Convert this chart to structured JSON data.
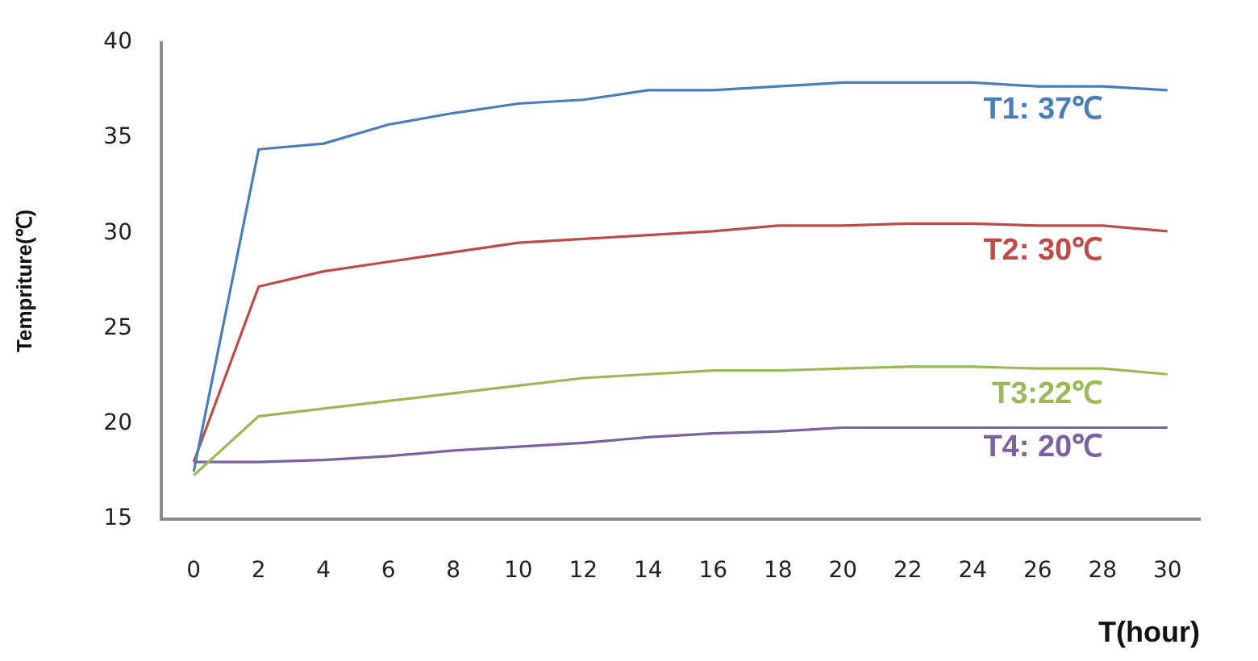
{
  "chart_data": {
    "type": "line",
    "xlabel": "T(hour)",
    "ylabel": "Tempriture(℃)",
    "x": [
      0,
      2,
      4,
      6,
      8,
      10,
      12,
      14,
      16,
      18,
      20,
      22,
      24,
      26,
      28,
      30
    ],
    "xlim": [
      -1,
      31
    ],
    "xticks": [
      0,
      2,
      4,
      6,
      8,
      10,
      12,
      14,
      16,
      18,
      20,
      22,
      24,
      26,
      28,
      30
    ],
    "ylim": [
      15,
      40
    ],
    "yticks": [
      15,
      20,
      25,
      30,
      35,
      40
    ],
    "grid": false,
    "legend": false,
    "marker": "none",
    "line_style": "solid",
    "series": [
      {
        "name": "T1: 37℃",
        "color": "#4a7ebb",
        "values": [
          17.5,
          34.4,
          34.7,
          35.7,
          36.3,
          36.8,
          37.0,
          37.5,
          37.5,
          37.7,
          37.9,
          37.9,
          37.9,
          37.7,
          37.7,
          37.5
        ]
      },
      {
        "name": "T2: 30℃",
        "color": "#be4b48",
        "values": [
          18,
          27.2,
          28,
          28.5,
          29,
          29.5,
          29.7,
          29.9,
          30.1,
          30.4,
          30.4,
          30.5,
          30.5,
          30.4,
          30.4,
          30.1
        ]
      },
      {
        "name": "T3:22℃",
        "color": "#98b954",
        "values": [
          17.3,
          20.4,
          20.8,
          21.2,
          21.6,
          22.0,
          22.4,
          22.6,
          22.8,
          22.8,
          22.9,
          23.0,
          23.0,
          22.9,
          22.9,
          22.6
        ]
      },
      {
        "name": "T4: 20℃",
        "color": "#7d60a0",
        "values": [
          18,
          18,
          18.1,
          18.3,
          18.6,
          18.8,
          19.0,
          19.3,
          19.5,
          19.6,
          19.8,
          19.8,
          19.8,
          19.8,
          19.8,
          19.8
        ]
      }
    ]
  }
}
